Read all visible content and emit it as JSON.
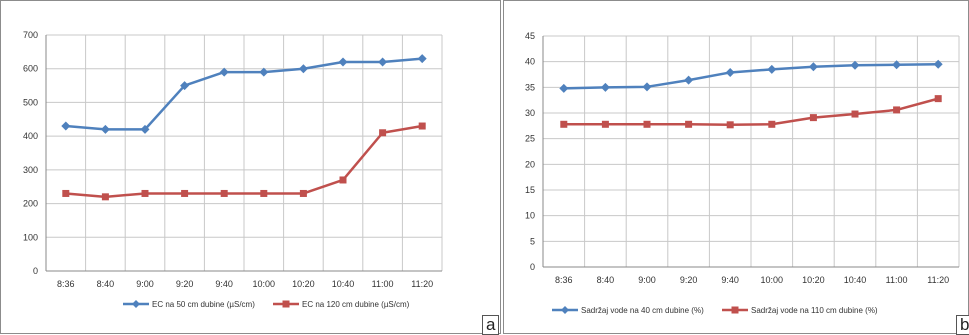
{
  "chart_data": [
    {
      "type": "line",
      "panel_label": "a",
      "categories": [
        "8:36",
        "8:40",
        "9:00",
        "9:20",
        "9:40",
        "10:00",
        "10:20",
        "10:40",
        "11:00",
        "11:20"
      ],
      "ylim": [
        0,
        700
      ],
      "yticks": [
        "0",
        "100",
        "200",
        "300",
        "400",
        "500",
        "600",
        "700"
      ],
      "grid": true,
      "legend_position": "bottom",
      "series": [
        {
          "name": "EC na 50 cm dubine (µS/cm)",
          "color": "#4f81bd",
          "marker": "diamond",
          "values": [
            430,
            420,
            420,
            550,
            590,
            590,
            600,
            620,
            620,
            630
          ]
        },
        {
          "name": "EC na 120 cm dubine (µS/cm)",
          "color": "#c0504d",
          "marker": "square",
          "values": [
            230,
            220,
            230,
            230,
            230,
            230,
            230,
            270,
            410,
            430
          ]
        }
      ]
    },
    {
      "type": "line",
      "panel_label": "b",
      "categories": [
        "8:36",
        "8:40",
        "9:00",
        "9:20",
        "9:40",
        "10:00",
        "10:20",
        "10:40",
        "11:00",
        "11:20"
      ],
      "ylim": [
        0,
        45
      ],
      "yticks": [
        "0",
        "5",
        "10",
        "15",
        "20",
        "25",
        "30",
        "35",
        "40",
        "45"
      ],
      "grid": true,
      "legend_position": "bottom",
      "series": [
        {
          "name": "Sadržaj vode na 40 cm dubine (%)",
          "color": "#4f81bd",
          "marker": "diamond",
          "values": [
            34.8,
            35,
            35.1,
            36.4,
            37.9,
            38.5,
            39,
            39.3,
            39.4,
            39.5
          ]
        },
        {
          "name": "Sadržaj vode na 110 cm dubine (%)",
          "color": "#c0504d",
          "marker": "square",
          "values": [
            27.8,
            27.8,
            27.8,
            27.8,
            27.7,
            27.8,
            29.1,
            29.8,
            30.6,
            32.8
          ]
        }
      ]
    }
  ]
}
